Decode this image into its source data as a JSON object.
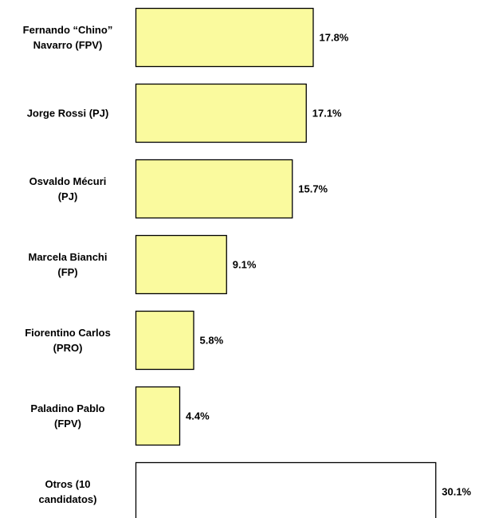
{
  "chart_data": {
    "type": "hbar",
    "categories": [
      "Fernando “Chino” Navarro (FPV)",
      "Jorge Rossi (PJ)",
      "Osvaldo Mécuri (PJ)",
      "Marcela Bianchi (FP)",
      "Fiorentino Carlos (PRO)",
      "Paladino Pablo (FPV)",
      "Otros (10 candidatos)"
    ],
    "values": [
      17.8,
      17.1,
      15.7,
      9.1,
      5.8,
      4.4,
      30.1
    ],
    "value_labels": [
      "17.8%",
      "17.1%",
      "15.7%",
      "9.1%",
      "5.8%",
      "4.4%",
      "30.1%"
    ],
    "colors": [
      "#fafa9e",
      "#fafa9e",
      "#fafa9e",
      "#fafa9e",
      "#fafa9e",
      "#fafa9e",
      "#ffffff"
    ]
  }
}
